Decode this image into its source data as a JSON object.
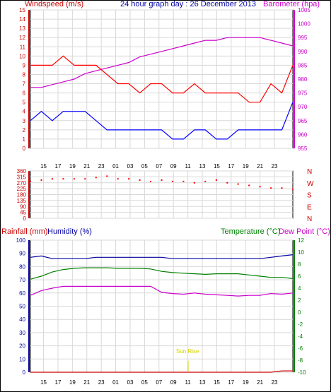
{
  "header": {
    "title": "24 hour graph day : 26 December 2013",
    "left_label": "Windspeed (m/s)",
    "right_label": "Barometer (hpa)"
  },
  "colors": {
    "title": "#0000a0",
    "wind_avg": "#0000ff",
    "wind_gust": "#ff0000",
    "barometer": "#cc00cc",
    "direction": "#ff0000",
    "humidity": "#0000a0",
    "temperature": "#008000",
    "dewpoint": "#cc00cc",
    "rainfall": "#cc0000",
    "axis_blue": "#0000a0",
    "sunrise": "#d4d400"
  },
  "x_axis": {
    "hour_ticks": [
      "15",
      "17",
      "19",
      "21",
      "23",
      "01",
      "03",
      "05",
      "07",
      "09",
      "11",
      "13",
      "15",
      "17",
      "19",
      "21",
      "23"
    ]
  },
  "compass": [
    "N",
    "W",
    "S",
    "E",
    "N"
  ],
  "bottom": {
    "rain_label": "Rainfall (mm)",
    "humidity_label": "Humidity (%)",
    "temp_label": "Temperature (°C)",
    "dew_label": "Dew Point (°C)",
    "sunrise_label": "Sun Rise"
  },
  "chart_data": [
    {
      "type": "line",
      "name": "wind-barometer",
      "title": "24 hour graph day : 26 December 2013",
      "ylabel": "Windspeed (m/s)",
      "y2label": "Barometer (hpa)",
      "ylim": [
        0,
        15
      ],
      "y2lim": [
        955,
        1005
      ],
      "yticks": [
        0,
        1,
        2,
        3,
        4,
        5,
        6,
        7,
        8,
        9,
        10,
        11,
        12,
        13,
        14,
        15
      ],
      "y2ticks": [
        955,
        960,
        965,
        970,
        975,
        980,
        985,
        990,
        995,
        1000,
        1005
      ],
      "x_hours_from_start": [
        0,
        1,
        2,
        3,
        4,
        5,
        6,
        7,
        8,
        9,
        10,
        11,
        12,
        13,
        14,
        15,
        16,
        17,
        18,
        19,
        20,
        21,
        22,
        23,
        24
      ],
      "series": [
        {
          "axis": "y2",
          "values": [
            977,
            977,
            978,
            979,
            980,
            982,
            983,
            984,
            985,
            986,
            988,
            989,
            990,
            991,
            992,
            993,
            994,
            994,
            995,
            995,
            995,
            995,
            994,
            993,
            992
          ]
        },
        {
          "axis": "y",
          "values": [
            9,
            9,
            9,
            10,
            9,
            9,
            9,
            8,
            7,
            7,
            6,
            7,
            7,
            6,
            6,
            7,
            6,
            6,
            6,
            6,
            5,
            5,
            7,
            6,
            9
          ]
        },
        {
          "axis": "y",
          "values": [
            3,
            4,
            3,
            4,
            4,
            4,
            3,
            2,
            2,
            2,
            2,
            2,
            2,
            1,
            1,
            2,
            2,
            1,
            1,
            2,
            2,
            2,
            2,
            2,
            5
          ]
        }
      ]
    },
    {
      "type": "scatter",
      "name": "wind-direction",
      "ylim": [
        0,
        360
      ],
      "yticks": [
        0,
        45,
        90,
        135,
        180,
        225,
        270,
        315,
        360
      ],
      "x_hours_from_start": [
        0,
        1,
        2,
        3,
        4,
        5,
        6,
        7,
        8,
        9,
        10,
        11,
        12,
        13,
        14,
        15,
        16,
        17,
        18,
        19,
        20,
        21,
        22,
        23,
        24
      ],
      "values": [
        280,
        290,
        300,
        300,
        300,
        300,
        310,
        320,
        300,
        300,
        290,
        280,
        290,
        280,
        280,
        270,
        280,
        290,
        270,
        260,
        250,
        240,
        230,
        230,
        220
      ]
    },
    {
      "type": "line",
      "name": "rain-humidity-temperature",
      "ylabel": "Rainfall (mm)",
      "y2label": "Temperature (°C)",
      "ylim": [
        0,
        100
      ],
      "y2lim": [
        -10,
        12
      ],
      "yticks": [
        0,
        10,
        20,
        30,
        40,
        50,
        60,
        70,
        80,
        90,
        100
      ],
      "y2ticks": [
        -10,
        -8,
        -6,
        -4,
        -2,
        0,
        2,
        4,
        6,
        8,
        10,
        12
      ],
      "x_hours_from_start": [
        0,
        1,
        2,
        3,
        4,
        5,
        6,
        7,
        8,
        9,
        10,
        11,
        12,
        13,
        14,
        15,
        16,
        17,
        18,
        19,
        20,
        21,
        22,
        23,
        24
      ],
      "series": [
        {
          "axis": "y",
          "values": [
            87,
            88,
            86,
            86,
            86,
            86,
            87,
            87,
            87,
            87,
            87,
            87,
            87,
            86,
            86,
            86,
            86,
            86,
            86,
            86,
            86,
            86,
            87,
            88,
            89
          ]
        },
        {
          "axis": "y2",
          "values": [
            5.5,
            6.0,
            6.7,
            7.1,
            7.3,
            7.4,
            7.4,
            7.4,
            7.3,
            7.3,
            7.3,
            7.2,
            6.8,
            6.6,
            6.5,
            6.4,
            6.3,
            6.4,
            6.4,
            6.4,
            6.2,
            6.0,
            5.8,
            5.8,
            5.6
          ]
        },
        {
          "axis": "y2",
          "values": [
            2.8,
            3.6,
            4.0,
            4.3,
            4.3,
            4.3,
            4.3,
            4.3,
            4.3,
            4.3,
            4.3,
            4.3,
            3.3,
            3.1,
            3.0,
            3.2,
            3.0,
            2.9,
            2.8,
            2.7,
            2.8,
            2.8,
            3.1,
            3.0,
            3.2
          ]
        },
        {
          "axis": "y",
          "values": [
            0,
            0,
            0,
            0,
            0,
            0,
            0,
            0,
            0,
            0,
            0,
            0,
            0,
            0,
            0,
            0,
            0,
            0,
            0,
            0,
            0,
            0,
            0,
            1,
            1
          ]
        }
      ]
    }
  ]
}
